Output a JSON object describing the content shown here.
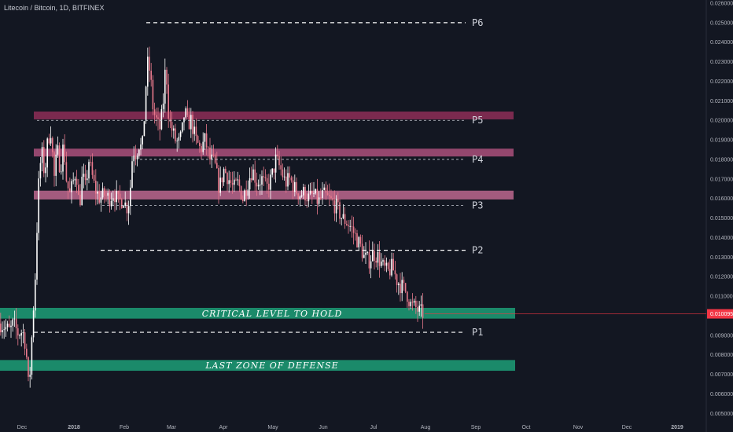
{
  "header": {
    "title": "Litecoin / Bitcoin, 1D, BITFINEX"
  },
  "chart_data": {
    "type": "candlestick",
    "title": "Litecoin / Bitcoin, 1D, BITFINEX",
    "ylim": [
      0.00485,
      0.026
    ],
    "y_ticks": [
      "0.005000",
      "0.006000",
      "0.007000",
      "0.008000",
      "0.009000",
      "0.010000",
      "0.011000",
      "0.012000",
      "0.013000",
      "0.014000",
      "0.015000",
      "0.016000",
      "0.017000",
      "0.018000",
      "0.019000",
      "0.020000",
      "0.021000",
      "0.022000",
      "0.023000",
      "0.024000",
      "0.025000",
      "0.026000"
    ],
    "x_ticks": [
      "Dec",
      "2018",
      "Feb",
      "Mar",
      "Apr",
      "May",
      "Jun",
      "Jul",
      "Aug",
      "Sep",
      "Oct",
      "Nov",
      "Dec",
      "2019"
    ],
    "last_price": {
      "label": "0.010095",
      "value": 0.010095,
      "color": "#f23645"
    },
    "colors": {
      "up": "#ffffff",
      "down": "#e8798c",
      "background": "#131722",
      "axis_text": "#b2b5be"
    },
    "pivot_levels": [
      {
        "label": "P6",
        "value": 0.025
      },
      {
        "label": "P5",
        "value": 0.02
      },
      {
        "label": "P4",
        "value": 0.018
      },
      {
        "label": "P3",
        "value": 0.01565
      },
      {
        "label": "P2",
        "value": 0.01335
      },
      {
        "label": "P1",
        "value": 0.00915
      }
    ],
    "resistance_zones": [
      {
        "y1": 0.02005,
        "y2": 0.02045,
        "color": "#7b2a4f"
      },
      {
        "y1": 0.01815,
        "y2": 0.01855,
        "color": "#94476e"
      },
      {
        "y1": 0.01595,
        "y2": 0.0164,
        "color": "#a35b7e"
      }
    ],
    "support_zones": [
      {
        "label": "CRITICAL LEVEL TO HOLD",
        "y1": 0.00985,
        "y2": 0.0104,
        "color": "#1b8a6a"
      },
      {
        "label": "LAST ZONE OF DEFENSE",
        "y1": 0.00718,
        "y2": 0.00773,
        "color": "#1b8a6a"
      }
    ],
    "price_path": [
      [
        0,
        0.0096
      ],
      [
        6,
        0.0094
      ],
      [
        12,
        0.0092
      ],
      [
        16,
        0.0096
      ],
      [
        22,
        0.0091
      ],
      [
        28,
        0.0092
      ],
      [
        32,
        0.0085
      ],
      [
        36,
        0.006
      ],
      [
        40,
        0.0092
      ],
      [
        44,
        0.012
      ],
      [
        48,
        0.0165
      ],
      [
        52,
        0.0185
      ],
      [
        56,
        0.0172
      ],
      [
        60,
        0.019
      ],
      [
        64,
        0.0195
      ],
      [
        68,
        0.017
      ],
      [
        72,
        0.0185
      ],
      [
        76,
        0.0175
      ],
      [
        80,
        0.0188
      ],
      [
        84,
        0.0168
      ],
      [
        88,
        0.0162
      ],
      [
        92,
        0.0168
      ],
      [
        96,
        0.0175
      ],
      [
        100,
        0.0155
      ],
      [
        104,
        0.0172
      ],
      [
        108,
        0.0165
      ],
      [
        112,
        0.018
      ],
      [
        116,
        0.0172
      ],
      [
        120,
        0.0165
      ],
      [
        126,
        0.016
      ],
      [
        132,
        0.0162
      ],
      [
        138,
        0.016
      ],
      [
        144,
        0.0163
      ],
      [
        150,
        0.0158
      ],
      [
        156,
        0.016
      ],
      [
        160,
        0.0155
      ],
      [
        164,
        0.016
      ],
      [
        168,
        0.0185
      ],
      [
        172,
        0.0183
      ],
      [
        176,
        0.0188
      ],
      [
        180,
        0.0185
      ],
      [
        184,
        0.021
      ],
      [
        186,
        0.023
      ],
      [
        190,
        0.0225
      ],
      [
        194,
        0.0205
      ],
      [
        198,
        0.02
      ],
      [
        202,
        0.0195
      ],
      [
        206,
        0.0205
      ],
      [
        210,
        0.023
      ],
      [
        214,
        0.02
      ],
      [
        218,
        0.0195
      ],
      [
        222,
        0.019
      ],
      [
        226,
        0.0188
      ],
      [
        230,
        0.0192
      ],
      [
        234,
        0.0205
      ],
      [
        238,
        0.0198
      ],
      [
        242,
        0.02
      ],
      [
        248,
        0.019
      ],
      [
        254,
        0.0185
      ],
      [
        260,
        0.019
      ],
      [
        266,
        0.018
      ],
      [
        272,
        0.0178
      ],
      [
        278,
        0.0165
      ],
      [
        284,
        0.0175
      ],
      [
        290,
        0.017
      ],
      [
        296,
        0.0165
      ],
      [
        302,
        0.0168
      ],
      [
        308,
        0.016
      ],
      [
        314,
        0.0168
      ],
      [
        320,
        0.0175
      ],
      [
        326,
        0.0168
      ],
      [
        332,
        0.017
      ],
      [
        338,
        0.0165
      ],
      [
        344,
        0.017
      ],
      [
        350,
        0.018
      ],
      [
        356,
        0.0175
      ],
      [
        362,
        0.0168
      ],
      [
        368,
        0.017
      ],
      [
        374,
        0.0165
      ],
      [
        380,
        0.0162
      ],
      [
        386,
        0.0163
      ],
      [
        392,
        0.016
      ],
      [
        398,
        0.0162
      ],
      [
        404,
        0.0158
      ],
      [
        410,
        0.0162
      ],
      [
        416,
        0.016
      ],
      [
        422,
        0.0158
      ],
      [
        428,
        0.0155
      ],
      [
        434,
        0.015
      ],
      [
        440,
        0.0148
      ],
      [
        446,
        0.0145
      ],
      [
        452,
        0.014
      ],
      [
        458,
        0.0135
      ],
      [
        462,
        0.013
      ],
      [
        468,
        0.0128
      ],
      [
        474,
        0.0132
      ],
      [
        480,
        0.013
      ],
      [
        486,
        0.0125
      ],
      [
        492,
        0.0122
      ],
      [
        498,
        0.0125
      ],
      [
        504,
        0.0118
      ],
      [
        510,
        0.0115
      ],
      [
        516,
        0.0112
      ],
      [
        522,
        0.0105
      ],
      [
        528,
        0.0104
      ],
      [
        532,
        0.0102
      ],
      [
        538,
        0.0101
      ]
    ],
    "overlay_labels": [
      "P6",
      "P5",
      "P4",
      "P3",
      "P2",
      "P1",
      "CRITICAL LEVEL TO HOLD",
      "LAST ZONE OF DEFENSE"
    ]
  }
}
